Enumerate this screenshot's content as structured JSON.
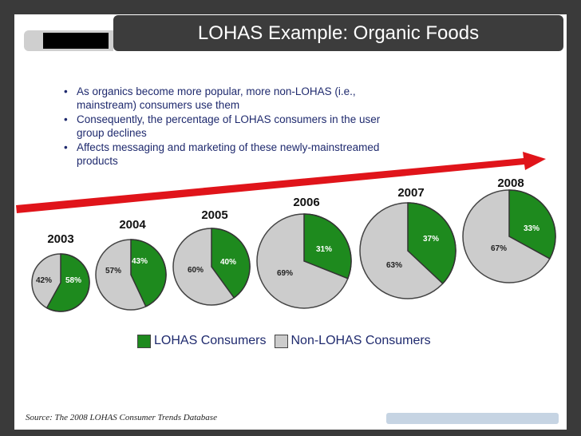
{
  "slide": {
    "title": "LOHAS Example: Organic Foods",
    "bullets": [
      "As organics become more popular, more non-LOHAS (i.e., mainstream) consumers use them",
      "Consequently, the percentage of LOHAS consumers in the user group declines",
      "Affects messaging and marketing of these newly-mainstreamed products"
    ],
    "source": "Source: The 2008 LOHAS Consumer Trends Database"
  },
  "colors": {
    "lohas": "#1e8a1e",
    "non_lohas": "#cccccc",
    "arrow": "#e0141a"
  },
  "chart_data": {
    "type": "pie",
    "title": "",
    "legend": [
      "LOHAS Consumers",
      "Non-LOHAS Consumers"
    ],
    "legend_placement": "bottom",
    "pies": [
      {
        "year": "2003",
        "lohas": 58,
        "non_lohas": 42,
        "lohas_label": "58%",
        "non_lohas_label": "42%"
      },
      {
        "year": "2004",
        "lohas": 43,
        "non_lohas": 57,
        "lohas_label": "43%",
        "non_lohas_label": "57%"
      },
      {
        "year": "2005",
        "lohas": 40,
        "non_lohas": 60,
        "lohas_label": "40%",
        "non_lohas_label": "60%"
      },
      {
        "year": "2006",
        "lohas": 31,
        "non_lohas": 69,
        "lohas_label": "31%",
        "non_lohas_label": "69%"
      },
      {
        "year": "2007",
        "lohas": 37,
        "non_lohas": 63,
        "lohas_label": "37%",
        "non_lohas_label": "63%"
      },
      {
        "year": "2008",
        "lohas": 33,
        "non_lohas": 67,
        "lohas_label": "33%",
        "non_lohas_label": "67%"
      }
    ]
  }
}
